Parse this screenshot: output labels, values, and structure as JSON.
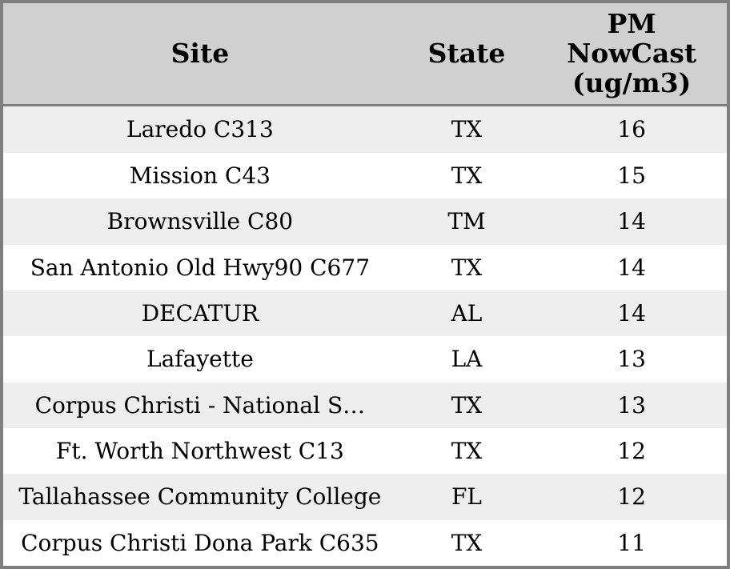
{
  "chart_data": {
    "type": "table",
    "columns": [
      {
        "key": "site",
        "label": "Site"
      },
      {
        "key": "state",
        "label": "State"
      },
      {
        "key": "pm_nowcast",
        "label": "PM\nNowCast\n(ug/m3)"
      }
    ],
    "rows": [
      {
        "site": "Laredo C313",
        "state": "TX",
        "pm_nowcast": "16"
      },
      {
        "site": "Mission C43",
        "state": "TX",
        "pm_nowcast": "15"
      },
      {
        "site": "Brownsville C80",
        "state": "TM",
        "pm_nowcast": "14"
      },
      {
        "site": "San Antonio Old Hwy90 C677",
        "state": "TX",
        "pm_nowcast": "14"
      },
      {
        "site": "DECATUR",
        "state": "AL",
        "pm_nowcast": "14"
      },
      {
        "site": "Lafayette",
        "state": "LA",
        "pm_nowcast": "13"
      },
      {
        "site": "Corpus Christi - National S…",
        "state": "TX",
        "pm_nowcast": "13"
      },
      {
        "site": "Ft. Worth Northwest C13",
        "state": "TX",
        "pm_nowcast": "12"
      },
      {
        "site": "Tallahassee Community College",
        "state": "FL",
        "pm_nowcast": "12"
      },
      {
        "site": "Corpus Christi Dona Park C635",
        "state": "TX",
        "pm_nowcast": "11"
      }
    ]
  },
  "colors": {
    "header_bg": "#d0d0d0",
    "stripe_bg": "#eeeeee",
    "row_bg": "#ffffff",
    "border": "#7f7f7f",
    "text": "#000000"
  }
}
